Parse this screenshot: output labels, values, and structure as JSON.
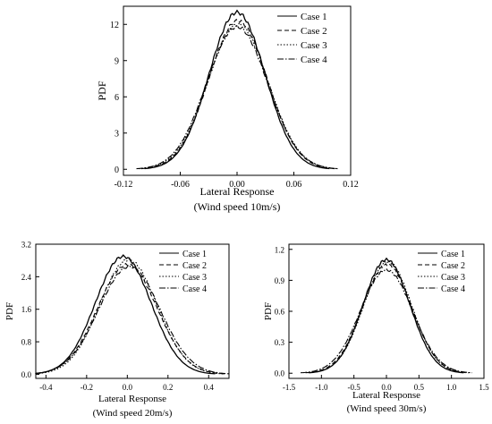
{
  "chart_data": [
    {
      "type": "line",
      "id": "c1",
      "xlabel": "Lateral Response",
      "subtitle": "(Wind speed 10m/s)",
      "ylabel": "PDF",
      "xlim": [
        -0.12,
        0.12
      ],
      "ylim": [
        -0.5,
        13.5
      ],
      "xticks": [
        -0.12,
        -0.06,
        0.0,
        0.06,
        0.12
      ],
      "xtick_labels": [
        "-0.12",
        "-0.06",
        "0.00",
        "0.06",
        "0.12"
      ],
      "yticks": [
        0,
        3,
        6,
        9,
        12
      ],
      "ytick_labels": [
        "0",
        "3",
        "6",
        "9",
        "12"
      ],
      "legend": "top-right",
      "series": [
        {
          "name": "Case 1",
          "mu": 0.0,
          "sigma": 0.0296,
          "peak": 13.0
        },
        {
          "name": "Case 2",
          "mu": 0.001,
          "sigma": 0.031,
          "peak": 12.3
        },
        {
          "name": "Case 3",
          "mu": 0.001,
          "sigma": 0.0318,
          "peak": 12.0
        },
        {
          "name": "Case 4",
          "mu": 0.0,
          "sigma": 0.0322,
          "peak": 11.8
        }
      ]
    },
    {
      "type": "line",
      "id": "c2",
      "xlabel": "Lateral Response",
      "subtitle": "(Wind speed 20m/s)",
      "ylabel": "PDF",
      "xlim": [
        -0.45,
        0.5
      ],
      "ylim": [
        -0.1,
        3.2
      ],
      "xticks": [
        -0.4,
        -0.2,
        0.0,
        0.2,
        0.4
      ],
      "xtick_labels": [
        "-0.4",
        "-0.2",
        "0.0",
        "0.2",
        "0.4"
      ],
      "yticks": [
        0.0,
        0.8,
        1.6,
        2.4,
        3.2
      ],
      "ytick_labels": [
        "0.0",
        "0.8",
        "1.6",
        "2.4",
        "3.2"
      ],
      "legend": "top-right",
      "series": [
        {
          "name": "Case 1",
          "mu": -0.02,
          "sigma": 0.137,
          "peak": 2.9
        },
        {
          "name": "Case 2",
          "mu": 0.0,
          "sigma": 0.146,
          "peak": 2.7
        },
        {
          "name": "Case 3",
          "mu": 0.005,
          "sigma": 0.141,
          "peak": 2.82
        },
        {
          "name": "Case 4",
          "mu": 0.01,
          "sigma": 0.15,
          "peak": 2.65
        }
      ]
    },
    {
      "type": "line",
      "id": "c3",
      "xlabel": "Lateral Response",
      "subtitle": "(Wind speed 30m/s)",
      "ylabel": "PDF",
      "xlim": [
        -1.5,
        1.5
      ],
      "ylim": [
        -0.05,
        1.25
      ],
      "xticks": [
        -1.5,
        -1.0,
        -0.5,
        0.0,
        0.5,
        1.0,
        1.5
      ],
      "xtick_labels": [
        "-1.5",
        "-1.0",
        "-0.5",
        "0.0",
        "0.5",
        "1.0",
        "1.5"
      ],
      "yticks": [
        0.0,
        0.3,
        0.6,
        0.9,
        1.2
      ],
      "ytick_labels": [
        "0.0",
        "0.3",
        "0.6",
        "0.9",
        "1.2"
      ],
      "legend": "top-right",
      "series": [
        {
          "name": "Case 1",
          "mu": 0.0,
          "sigma": 0.36,
          "peak": 1.1
        },
        {
          "name": "Case 2",
          "mu": 0.01,
          "sigma": 0.38,
          "peak": 1.05
        },
        {
          "name": "Case 3",
          "mu": 0.02,
          "sigma": 0.37,
          "peak": 1.08
        },
        {
          "name": "Case 4",
          "mu": 0.0,
          "sigma": 0.4,
          "peak": 1.0
        }
      ]
    }
  ]
}
